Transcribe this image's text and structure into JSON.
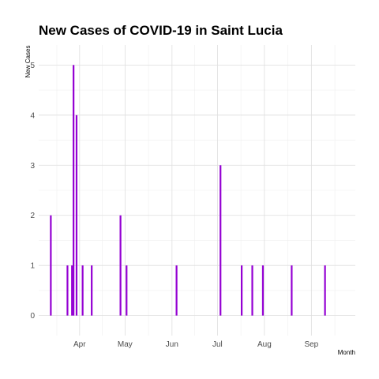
{
  "chart_data": {
    "type": "bar",
    "title": "New Cases of COVID-19 in Saint Lucia",
    "xlabel": "Month",
    "ylabel": "New Cases",
    "x_axis": "date",
    "xlim": [
      "2020-03-05",
      "2020-09-30"
    ],
    "ylim": [
      -0.4,
      5.4
    ],
    "y_ticks": [
      0,
      1,
      2,
      3,
      4,
      5
    ],
    "x_ticks": [
      {
        "date": "2020-04-01",
        "label": "Apr"
      },
      {
        "date": "2020-05-01",
        "label": "May"
      },
      {
        "date": "2020-06-01",
        "label": "Jun"
      },
      {
        "date": "2020-07-01",
        "label": "Jul"
      },
      {
        "date": "2020-08-01",
        "label": "Aug"
      },
      {
        "date": "2020-09-01",
        "label": "Sep"
      }
    ],
    "grid": true,
    "bar_color": "#9400D3",
    "data": [
      {
        "date": "2020-03-13",
        "value": 2
      },
      {
        "date": "2020-03-24",
        "value": 1
      },
      {
        "date": "2020-03-27",
        "value": 1
      },
      {
        "date": "2020-03-28",
        "value": 5
      },
      {
        "date": "2020-03-30",
        "value": 4
      },
      {
        "date": "2020-04-03",
        "value": 1
      },
      {
        "date": "2020-04-09",
        "value": 1
      },
      {
        "date": "2020-04-28",
        "value": 2
      },
      {
        "date": "2020-05-02",
        "value": 1
      },
      {
        "date": "2020-06-04",
        "value": 1
      },
      {
        "date": "2020-07-03",
        "value": 3
      },
      {
        "date": "2020-07-17",
        "value": 1
      },
      {
        "date": "2020-07-24",
        "value": 1
      },
      {
        "date": "2020-07-31",
        "value": 1
      },
      {
        "date": "2020-08-19",
        "value": 1
      },
      {
        "date": "2020-09-10",
        "value": 1
      }
    ]
  }
}
